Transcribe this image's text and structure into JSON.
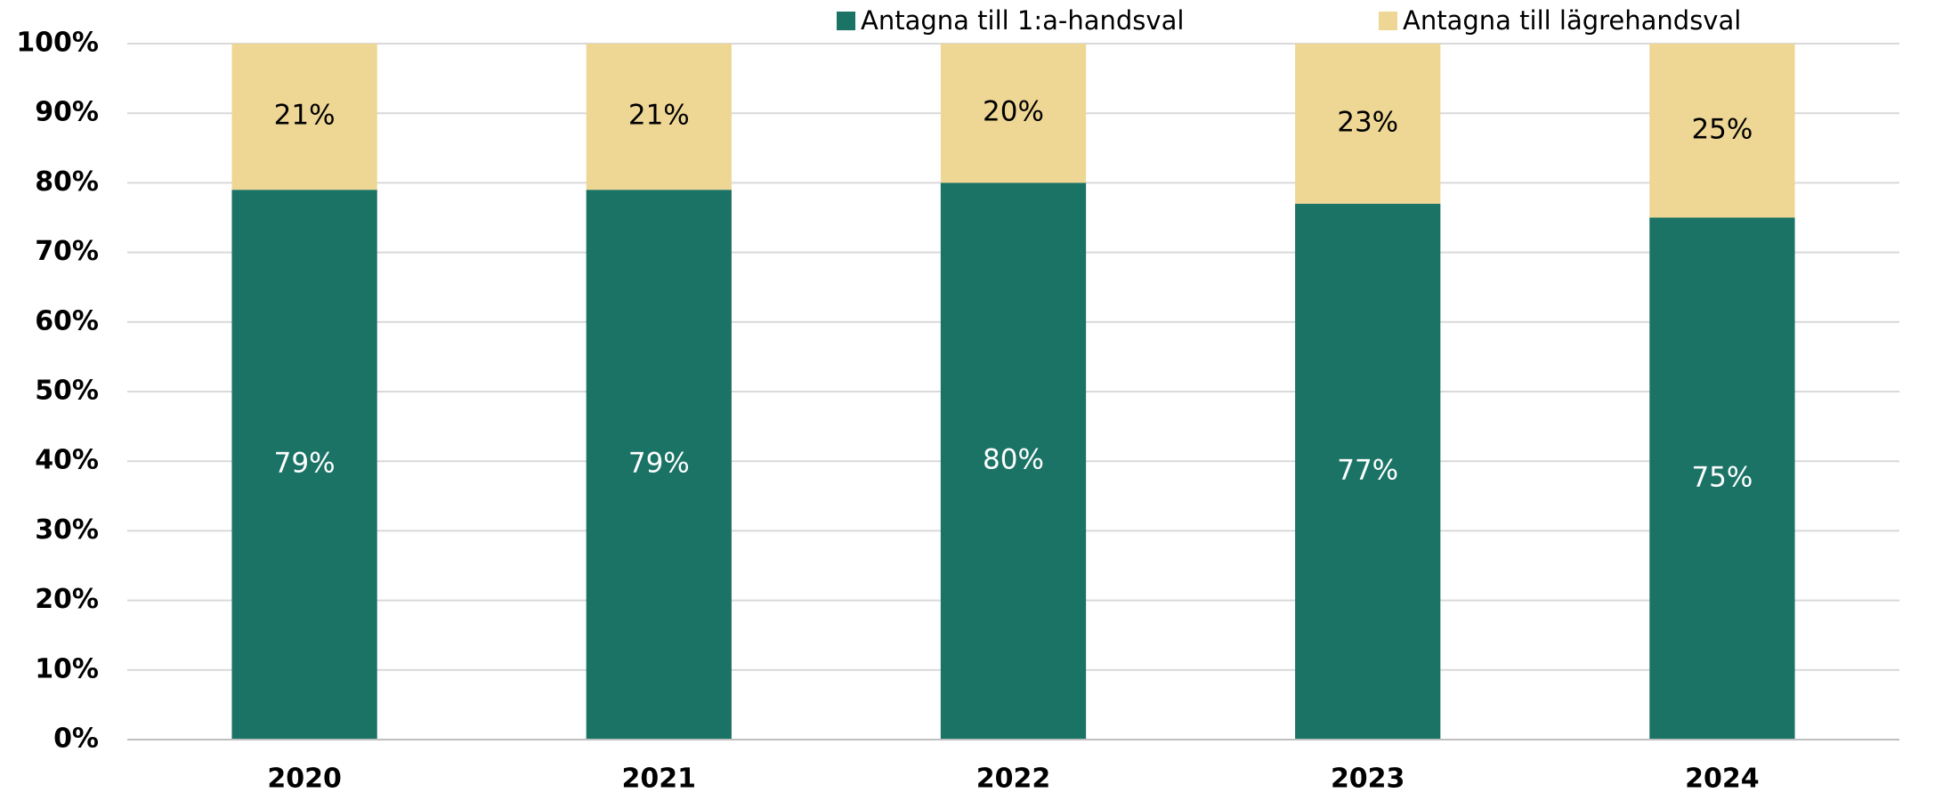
{
  "chart_data": {
    "type": "stacked_bar",
    "categories": [
      "2020",
      "2021",
      "2022",
      "2023",
      "2024"
    ],
    "series": [
      {
        "name": "Antagna till 1:a-handsval",
        "color": "#1b7366",
        "values": [
          79,
          79,
          80,
          77,
          75
        ],
        "value_labels": [
          "79%",
          "79%",
          "80%",
          "77%",
          "75%"
        ]
      },
      {
        "name": "Antagna till lägrehandsval",
        "color": "#eed794",
        "values": [
          21,
          21,
          20,
          23,
          25
        ],
        "value_labels": [
          "21%",
          "21%",
          "20%",
          "23%",
          "25%"
        ]
      }
    ],
    "ylim": [
      0,
      100
    ],
    "yticks": [
      {
        "value": 0,
        "label": "0%"
      },
      {
        "value": 10,
        "label": "10%"
      },
      {
        "value": 20,
        "label": "20%"
      },
      {
        "value": 30,
        "label": "30%"
      },
      {
        "value": 40,
        "label": "40%"
      },
      {
        "value": 50,
        "label": "50%"
      },
      {
        "value": 60,
        "label": "60%"
      },
      {
        "value": 70,
        "label": "70%"
      },
      {
        "value": 80,
        "label": "80%"
      },
      {
        "value": 90,
        "label": "90%"
      },
      {
        "value": 100,
        "label": "100%"
      }
    ],
    "grid": true,
    "legend": "top"
  }
}
